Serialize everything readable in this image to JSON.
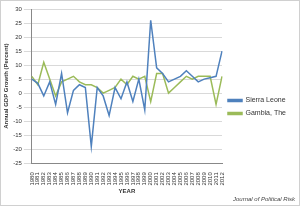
{
  "chart_data": {
    "type": "line",
    "y_label": "Annual GDP Growth (Percent)",
    "x_label": "YEAR",
    "annotation": "Journal of Political Risk",
    "categories": [
      1980,
      1981,
      1982,
      1983,
      1984,
      1985,
      1986,
      1987,
      1988,
      1989,
      1990,
      1991,
      1992,
      1993,
      1994,
      1995,
      1996,
      1997,
      1998,
      1999,
      2000,
      2001,
      2002,
      2003,
      2004,
      2005,
      2006,
      2007,
      2008,
      2009,
      2010,
      2011,
      2012
    ],
    "series": [
      {
        "name": "Sierra Leone",
        "color": "#4f81bd",
        "values": [
          5,
          3.5,
          -1,
          4,
          -4,
          7,
          -7,
          1,
          3,
          2,
          -19,
          2,
          -1,
          -8,
          2,
          -2,
          4,
          -3,
          5,
          -6,
          26,
          9,
          7,
          4,
          5,
          6,
          8,
          6,
          4,
          5,
          5.5,
          6,
          15
        ]
      },
      {
        "name": "Gambia, The",
        "color": "#9bbb59",
        "values": [
          6,
          3,
          11,
          5,
          -1,
          4,
          5,
          6,
          4,
          3,
          3,
          2,
          0,
          1,
          2,
          5,
          3,
          6,
          5,
          6,
          -3,
          7,
          7,
          0,
          2,
          4,
          6,
          5,
          6,
          6,
          6,
          -4,
          6
        ]
      }
    ],
    "ylim": [
      -25,
      30
    ],
    "yticks": [
      -25,
      -20,
      -15,
      -10,
      -5,
      0,
      5,
      10,
      15,
      20,
      25,
      30
    ],
    "grid": true,
    "legend": "right"
  }
}
